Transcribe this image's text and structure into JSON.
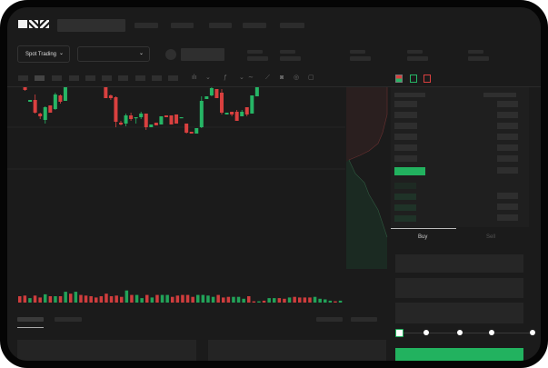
{
  "brand": {
    "logo_text": "OKX"
  },
  "controls": {
    "market_select": "Spot Trading",
    "chevron": "⌄"
  },
  "orderbook": {
    "icons": [
      "orderbook-both-icon",
      "orderbook-bids-icon",
      "orderbook-asks-icon"
    ]
  },
  "trade": {
    "tabs": [
      "Buy",
      "Sell"
    ],
    "active_tab": "Buy",
    "slider_value_percent": 0,
    "slider_stops": [
      0,
      25,
      50,
      75,
      100
    ]
  },
  "colors": {
    "up": "#26b565",
    "down": "#d9403f",
    "background": "#1b1b1b",
    "accent": "#22b25f"
  },
  "chart_data": {
    "type": "candlestick",
    "title": "",
    "axes_visible": false,
    "grid": true,
    "candles": [
      {
        "o": 128,
        "h": 129,
        "l": 124,
        "c": 125
      },
      {
        "o": 128,
        "h": 129,
        "l": 118,
        "c": 119
      },
      {
        "o": 106,
        "h": 108,
        "l": 106,
        "c": 108
      },
      {
        "o": 108,
        "h": 114,
        "l": 93,
        "c": 94
      },
      {
        "o": 93,
        "h": 94,
        "l": 87,
        "c": 90
      },
      {
        "o": 86,
        "h": 101,
        "l": 82,
        "c": 100
      },
      {
        "o": 102,
        "h": 102,
        "l": 94,
        "c": 94
      },
      {
        "o": 98,
        "h": 116,
        "l": 97,
        "c": 114
      },
      {
        "o": 113,
        "h": 114,
        "l": 104,
        "c": 106
      },
      {
        "o": 107,
        "h": 143,
        "l": 107,
        "c": 135
      },
      {
        "o": 134,
        "h": 137,
        "l": 125,
        "c": 125
      },
      {
        "o": 126,
        "h": 168,
        "l": 126,
        "c": 155
      },
      {
        "o": 157,
        "h": 158,
        "l": 152,
        "c": 152
      },
      {
        "o": 154,
        "h": 155,
        "l": 149,
        "c": 150
      },
      {
        "o": 154,
        "h": 159,
        "l": 142,
        "c": 144
      },
      {
        "o": 151,
        "h": 151,
        "l": 148,
        "c": 148
      },
      {
        "o": 151,
        "h": 154,
        "l": 130,
        "c": 131
      },
      {
        "o": 130,
        "h": 130,
        "l": 110,
        "c": 110
      },
      {
        "o": 113,
        "h": 114,
        "l": 108,
        "c": 110
      },
      {
        "o": 111,
        "h": 112,
        "l": 78,
        "c": 84
      },
      {
        "o": 83,
        "h": 85,
        "l": 80,
        "c": 81
      },
      {
        "o": 82,
        "h": 93,
        "l": 79,
        "c": 91
      },
      {
        "o": 91,
        "h": 94,
        "l": 85,
        "c": 87
      },
      {
        "o": 88,
        "h": 89,
        "l": 82,
        "c": 89
      },
      {
        "o": 89,
        "h": 95,
        "l": 87,
        "c": 93
      },
      {
        "o": 93,
        "h": 93,
        "l": 75,
        "c": 78
      },
      {
        "o": 78,
        "h": 81,
        "l": 78,
        "c": 81
      },
      {
        "o": 83,
        "h": 83,
        "l": 80,
        "c": 80
      },
      {
        "o": 81,
        "h": 90,
        "l": 81,
        "c": 90
      },
      {
        "o": 91,
        "h": 91,
        "l": 89,
        "c": 89
      },
      {
        "o": 91,
        "h": 91,
        "l": 81,
        "c": 81
      },
      {
        "o": 92,
        "h": 92,
        "l": 82,
        "c": 82
      },
      {
        "o": 89,
        "h": 89,
        "l": 89,
        "c": 89
      },
      {
        "o": 82,
        "h": 82,
        "l": 71,
        "c": 72
      },
      {
        "o": 73,
        "h": 73,
        "l": 71,
        "c": 71
      },
      {
        "o": 71,
        "h": 77,
        "l": 71,
        "c": 77
      },
      {
        "o": 78,
        "h": 112,
        "l": 77,
        "c": 107
      },
      {
        "o": 109,
        "h": 112,
        "l": 109,
        "c": 112
      },
      {
        "o": 113,
        "h": 126,
        "l": 112,
        "c": 121
      },
      {
        "o": 120,
        "h": 120,
        "l": 110,
        "c": 110
      },
      {
        "o": 116,
        "h": 120,
        "l": 92,
        "c": 94
      },
      {
        "o": 92,
        "h": 94,
        "l": 92,
        "c": 94
      },
      {
        "o": 95,
        "h": 95,
        "l": 90,
        "c": 92
      },
      {
        "o": 95,
        "h": 97,
        "l": 85,
        "c": 85
      },
      {
        "o": 90,
        "h": 97,
        "l": 90,
        "c": 95
      },
      {
        "o": 100,
        "h": 100,
        "l": 90,
        "c": 92
      },
      {
        "o": 93,
        "h": 113,
        "l": 93,
        "c": 113
      },
      {
        "o": 112,
        "h": 128,
        "l": 112,
        "c": 128
      },
      {
        "o": 128,
        "h": 185,
        "l": 128,
        "c": 170
      },
      {
        "o": 172,
        "h": 173,
        "l": 157,
        "c": 159
      },
      {
        "o": 159,
        "h": 159,
        "l": 131,
        "c": 135
      },
      {
        "o": 137,
        "h": 137,
        "l": 135,
        "c": 135
      },
      {
        "o": 135,
        "h": 135,
        "l": 128,
        "c": 129
      },
      {
        "o": 130,
        "h": 133,
        "l": 129,
        "c": 129
      },
      {
        "o": 127,
        "h": 142,
        "l": 127,
        "c": 139
      },
      {
        "o": 141,
        "h": 145,
        "l": 139,
        "c": 139
      },
      {
        "o": 137,
        "h": 147,
        "l": 137,
        "c": 141
      },
      {
        "o": 141,
        "h": 168,
        "l": 141,
        "c": 168
      },
      {
        "o": 170,
        "h": 170,
        "l": 158,
        "c": 158
      },
      {
        "o": 158,
        "h": 158,
        "l": 153,
        "c": 153
      },
      {
        "o": 151,
        "h": 164,
        "l": 150,
        "c": 159
      },
      {
        "o": 159,
        "h": 176,
        "l": 159,
        "c": 169
      },
      {
        "o": 169,
        "h": 182,
        "l": 169,
        "c": 178
      },
      {
        "o": 169,
        "h": 170,
        "l": 160,
        "c": 163
      },
      {
        "o": 162,
        "h": 173,
        "l": 161,
        "c": 167
      }
    ],
    "volume": [
      {
        "v": 10,
        "up": false
      },
      {
        "v": 11,
        "up": false
      },
      {
        "v": 7,
        "up": true
      },
      {
        "v": 11,
        "up": false
      },
      {
        "v": 8,
        "up": false
      },
      {
        "v": 13,
        "up": true
      },
      {
        "v": 10,
        "up": false
      },
      {
        "v": 10,
        "up": true
      },
      {
        "v": 10,
        "up": false
      },
      {
        "v": 17,
        "up": true
      },
      {
        "v": 14,
        "up": false
      },
      {
        "v": 17,
        "up": true
      },
      {
        "v": 12,
        "up": false
      },
      {
        "v": 11,
        "up": false
      },
      {
        "v": 10,
        "up": false
      },
      {
        "v": 8,
        "up": false
      },
      {
        "v": 10,
        "up": false
      },
      {
        "v": 14,
        "up": false
      },
      {
        "v": 10,
        "up": false
      },
      {
        "v": 11,
        "up": false
      },
      {
        "v": 9,
        "up": false
      },
      {
        "v": 19,
        "up": true
      },
      {
        "v": 12,
        "up": false
      },
      {
        "v": 12,
        "up": true
      },
      {
        "v": 7,
        "up": true
      },
      {
        "v": 12,
        "up": false
      },
      {
        "v": 8,
        "up": true
      },
      {
        "v": 12,
        "up": false
      },
      {
        "v": 12,
        "up": true
      },
      {
        "v": 12,
        "up": true
      },
      {
        "v": 9,
        "up": false
      },
      {
        "v": 11,
        "up": false
      },
      {
        "v": 12,
        "up": false
      },
      {
        "v": 12,
        "up": false
      },
      {
        "v": 9,
        "up": false
      },
      {
        "v": 12,
        "up": true
      },
      {
        "v": 12,
        "up": true
      },
      {
        "v": 11,
        "up": true
      },
      {
        "v": 9,
        "up": true
      },
      {
        "v": 12,
        "up": false
      },
      {
        "v": 8,
        "up": false
      },
      {
        "v": 9,
        "up": false
      },
      {
        "v": 9,
        "up": true
      },
      {
        "v": 9,
        "up": true
      },
      {
        "v": 6,
        "up": true
      },
      {
        "v": 10,
        "up": false
      },
      {
        "v": 2,
        "up": false
      },
      {
        "v": 2,
        "up": true
      },
      {
        "v": 3,
        "up": false
      },
      {
        "v": 7,
        "up": true
      },
      {
        "v": 7,
        "up": true
      },
      {
        "v": 7,
        "up": false
      },
      {
        "v": 6,
        "up": false
      },
      {
        "v": 8,
        "up": true
      },
      {
        "v": 9,
        "up": false
      },
      {
        "v": 8,
        "up": false
      },
      {
        "v": 8,
        "up": false
      },
      {
        "v": 8,
        "up": false
      },
      {
        "v": 9,
        "up": true
      },
      {
        "v": 6,
        "up": true
      },
      {
        "v": 5,
        "up": true
      },
      {
        "v": 3,
        "up": true
      },
      {
        "v": 2,
        "up": false
      },
      {
        "v": 3,
        "up": true
      }
    ]
  }
}
